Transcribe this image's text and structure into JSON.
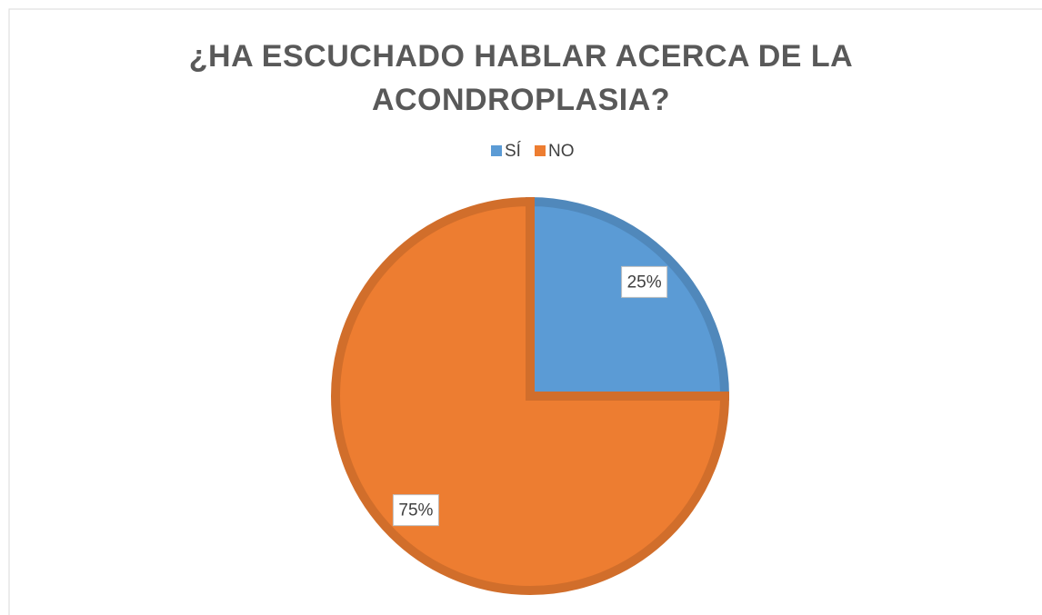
{
  "chart_data": {
    "type": "pie",
    "title": "¿HA ESCUCHADO HABLAR ACERCA DE LA ACONDROPLASIA?",
    "categories": [
      "SÍ",
      "NO"
    ],
    "values": [
      25,
      75
    ],
    "value_labels": [
      "25%",
      "75%"
    ],
    "colors": [
      "#5b9bd5",
      "#ed7d31"
    ],
    "legend": "top"
  }
}
